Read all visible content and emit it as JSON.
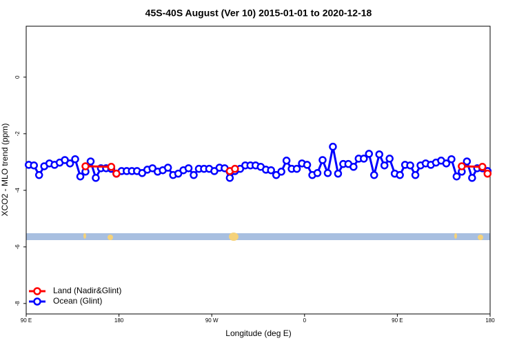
{
  "chart_data": {
    "type": "line",
    "title": "45S-40S August (Ver 10)   2015-01-01 to 2020-12-18",
    "x_label": "Longitude (deg E)",
    "y_label": "XCO2 - MLO trend (ppm)",
    "xlim": [
      90,
      540
    ],
    "xticks": [
      {
        "value": 90,
        "label": "90 E"
      },
      180,
      {
        "value": 270,
        "label": "90 W"
      },
      {
        "value": 360,
        "label": "0"
      },
      {
        "value": 450,
        "label": "90 E"
      },
      {
        "value": 540,
        "label": "180"
      }
    ],
    "ylim": [
      -8.37,
      1.8
    ],
    "yticks": [
      0,
      -2,
      -4,
      -6,
      -8
    ],
    "legend": "bottom-left",
    "series": [
      {
        "name": "Ocean (Glint)",
        "color": "#0000ff",
        "x": [
          92.5,
          97.5,
          102.5,
          107.5,
          112.5,
          117.5,
          122.5,
          127.5,
          132.5,
          137.5,
          142.5,
          147.5,
          152.5,
          157.5,
          162.5,
          167.5,
          172.5,
          177.5,
          182.5,
          187.5,
          192.5,
          197.5,
          202.5,
          207.5,
          212.5,
          217.5,
          222.5,
          227.5,
          232.5,
          237.5,
          242.5,
          247.5,
          252.5,
          257.5,
          262.5,
          267.5,
          272.5,
          277.5,
          282.5,
          287.5,
          292.5,
          297.5,
          302.5,
          307.5,
          312.5,
          317.5,
          322.5,
          327.5,
          332.5,
          337.5,
          342.5,
          347.5,
          352.5,
          357.5,
          362.5,
          367.5,
          372.5,
          377.5,
          382.5,
          387.5,
          392.5,
          397.5,
          402.5,
          407.5,
          412.5,
          417.5,
          422.5,
          427.5,
          432.5,
          437.5,
          442.5,
          447.5,
          452.5,
          457.5,
          462.5,
          467.5,
          472.5,
          477.5,
          482.5,
          487.5,
          492.5,
          497.5,
          502.5,
          507.5,
          512.5,
          517.5,
          522.5,
          527.5,
          532.5,
          537.5
        ],
        "values": [
          -3.1,
          -3.12,
          -3.46,
          -3.15,
          -3.05,
          -3.1,
          -3.02,
          -2.93,
          -3.05,
          -2.9,
          -3.51,
          -3.34,
          -2.98,
          -3.56,
          -3.22,
          -3.22,
          -3.24,
          -3.41,
          -3.32,
          -3.32,
          -3.32,
          -3.32,
          -3.39,
          -3.27,
          -3.22,
          -3.34,
          -3.29,
          -3.2,
          -3.46,
          -3.41,
          -3.29,
          -3.22,
          -3.46,
          -3.24,
          -3.24,
          -3.24,
          -3.32,
          -3.2,
          -3.22,
          -3.56,
          -3.32,
          -3.24,
          -3.12,
          -3.12,
          -3.12,
          -3.17,
          -3.27,
          -3.29,
          -3.46,
          -3.34,
          -2.95,
          -3.24,
          -3.24,
          -3.05,
          -3.1,
          -3.46,
          -3.39,
          -2.93,
          -3.39,
          -2.46,
          -3.41,
          -3.07,
          -3.07,
          -3.17,
          -2.88,
          -2.88,
          -2.71,
          -3.46,
          -2.73,
          -3.12,
          -2.88,
          -3.41,
          -3.46,
          -3.1,
          -3.12,
          -3.46,
          -3.12,
          -3.05,
          -3.1,
          -3.02,
          -2.95,
          -3.05,
          -2.9,
          -3.51,
          -3.34,
          -2.98,
          -3.56,
          -3.22,
          -3.22,
          -3.32
        ]
      },
      {
        "name": "Land (Nadir&Glint)",
        "color": "#ff0000",
        "x": [
          147.5,
          172.5,
          177.5,
          null,
          287.5,
          292.5,
          null,
          512.5,
          532.5,
          537.5
        ],
        "values": [
          -3.15,
          -3.17,
          -3.41,
          null,
          -3.32,
          -3.24,
          null,
          -3.15,
          -3.17,
          -3.41
        ]
      }
    ]
  }
}
